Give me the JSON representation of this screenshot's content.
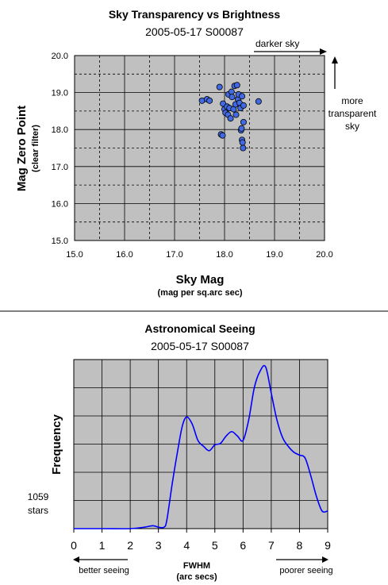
{
  "chart_data": [
    {
      "type": "scatter",
      "title": "Sky Transparency vs Brightness",
      "subtitle": "2005-05-17 S00087",
      "xlabel": "Sky Mag",
      "xlabel_sub": "(mag per sq.arc sec)",
      "ylabel": "Mag Zero Point",
      "ylabel_sub": "(clear filter)",
      "xlim": [
        15.0,
        20.0
      ],
      "ylim": [
        15.0,
        20.0
      ],
      "x_ticks": [
        "15.0",
        "16.0",
        "17.0",
        "18.0",
        "19.0",
        "20.0"
      ],
      "y_ticks": [
        "15.0",
        "16.0",
        "17.0",
        "18.0",
        "19.0",
        "20.0"
      ],
      "grid": "solid at integers, dashed at half values",
      "background": "#c0c0c0",
      "marker_color": "#4169e1",
      "annotations": {
        "darker_sky": "darker sky",
        "transparent_1": "more",
        "transparent_2": "transparent",
        "transparent_3": "sky"
      },
      "points": [
        {
          "x": 17.55,
          "y": 18.78
        },
        {
          "x": 17.65,
          "y": 18.82
        },
        {
          "x": 17.7,
          "y": 18.78
        },
        {
          "x": 17.9,
          "y": 19.15
        },
        {
          "x": 17.93,
          "y": 17.87
        },
        {
          "x": 17.96,
          "y": 17.84
        },
        {
          "x": 17.97,
          "y": 18.7
        },
        {
          "x": 18.0,
          "y": 18.55
        },
        {
          "x": 18.02,
          "y": 18.45
        },
        {
          "x": 18.05,
          "y": 18.62
        },
        {
          "x": 18.07,
          "y": 18.4
        },
        {
          "x": 18.08,
          "y": 18.95
        },
        {
          "x": 18.1,
          "y": 18.58
        },
        {
          "x": 18.12,
          "y": 18.3
        },
        {
          "x": 18.14,
          "y": 19.02
        },
        {
          "x": 18.15,
          "y": 18.88
        },
        {
          "x": 18.18,
          "y": 18.55
        },
        {
          "x": 18.2,
          "y": 19.18
        },
        {
          "x": 18.22,
          "y": 18.68
        },
        {
          "x": 18.23,
          "y": 18.4
        },
        {
          "x": 18.25,
          "y": 19.2
        },
        {
          "x": 18.27,
          "y": 18.82
        },
        {
          "x": 18.28,
          "y": 18.95
        },
        {
          "x": 18.3,
          "y": 18.72
        },
        {
          "x": 18.32,
          "y": 18.58
        },
        {
          "x": 18.33,
          "y": 17.98
        },
        {
          "x": 18.34,
          "y": 18.03
        },
        {
          "x": 18.35,
          "y": 17.72
        },
        {
          "x": 18.36,
          "y": 17.65
        },
        {
          "x": 18.37,
          "y": 17.5
        },
        {
          "x": 18.38,
          "y": 18.65
        },
        {
          "x": 18.38,
          "y": 18.2
        },
        {
          "x": 18.35,
          "y": 18.9
        },
        {
          "x": 18.68,
          "y": 18.76
        }
      ]
    },
    {
      "type": "line",
      "title": "Astronomical Seeing",
      "subtitle": "2005-05-17 S00087",
      "xlabel": "FWHM",
      "xlabel_sub": "(arc secs)",
      "ylabel": "Frequency",
      "xlim": [
        0,
        9
      ],
      "x_ticks": [
        "0",
        "1",
        "2",
        "3",
        "4",
        "5",
        "6",
        "7",
        "8",
        "9"
      ],
      "ylim": [
        0,
        1
      ],
      "grid": true,
      "background": "#c0c0c0",
      "line_color": "#0000ff",
      "annotations": {
        "count": "1059",
        "count_unit": "stars",
        "better": "better seeing",
        "poorer": "poorer seeing"
      },
      "x": [
        0,
        1.0,
        2.0,
        2.5,
        2.8,
        3.0,
        3.2,
        3.3,
        3.5,
        3.7,
        3.85,
        4.0,
        4.2,
        4.4,
        4.6,
        4.8,
        5.0,
        5.2,
        5.4,
        5.6,
        5.8,
        6.0,
        6.2,
        6.4,
        6.6,
        6.8,
        7.0,
        7.2,
        7.4,
        7.6,
        7.8,
        8.0,
        8.2,
        8.4,
        8.6,
        8.8,
        9.0
      ],
      "y": [
        0.0,
        0.0,
        0.0,
        0.01,
        0.02,
        0.01,
        0.01,
        0.06,
        0.32,
        0.55,
        0.7,
        0.76,
        0.71,
        0.6,
        0.56,
        0.53,
        0.57,
        0.58,
        0.63,
        0.66,
        0.63,
        0.6,
        0.74,
        0.96,
        1.07,
        1.1,
        0.92,
        0.74,
        0.62,
        0.56,
        0.52,
        0.5,
        0.48,
        0.36,
        0.22,
        0.12,
        0.12
      ]
    }
  ]
}
